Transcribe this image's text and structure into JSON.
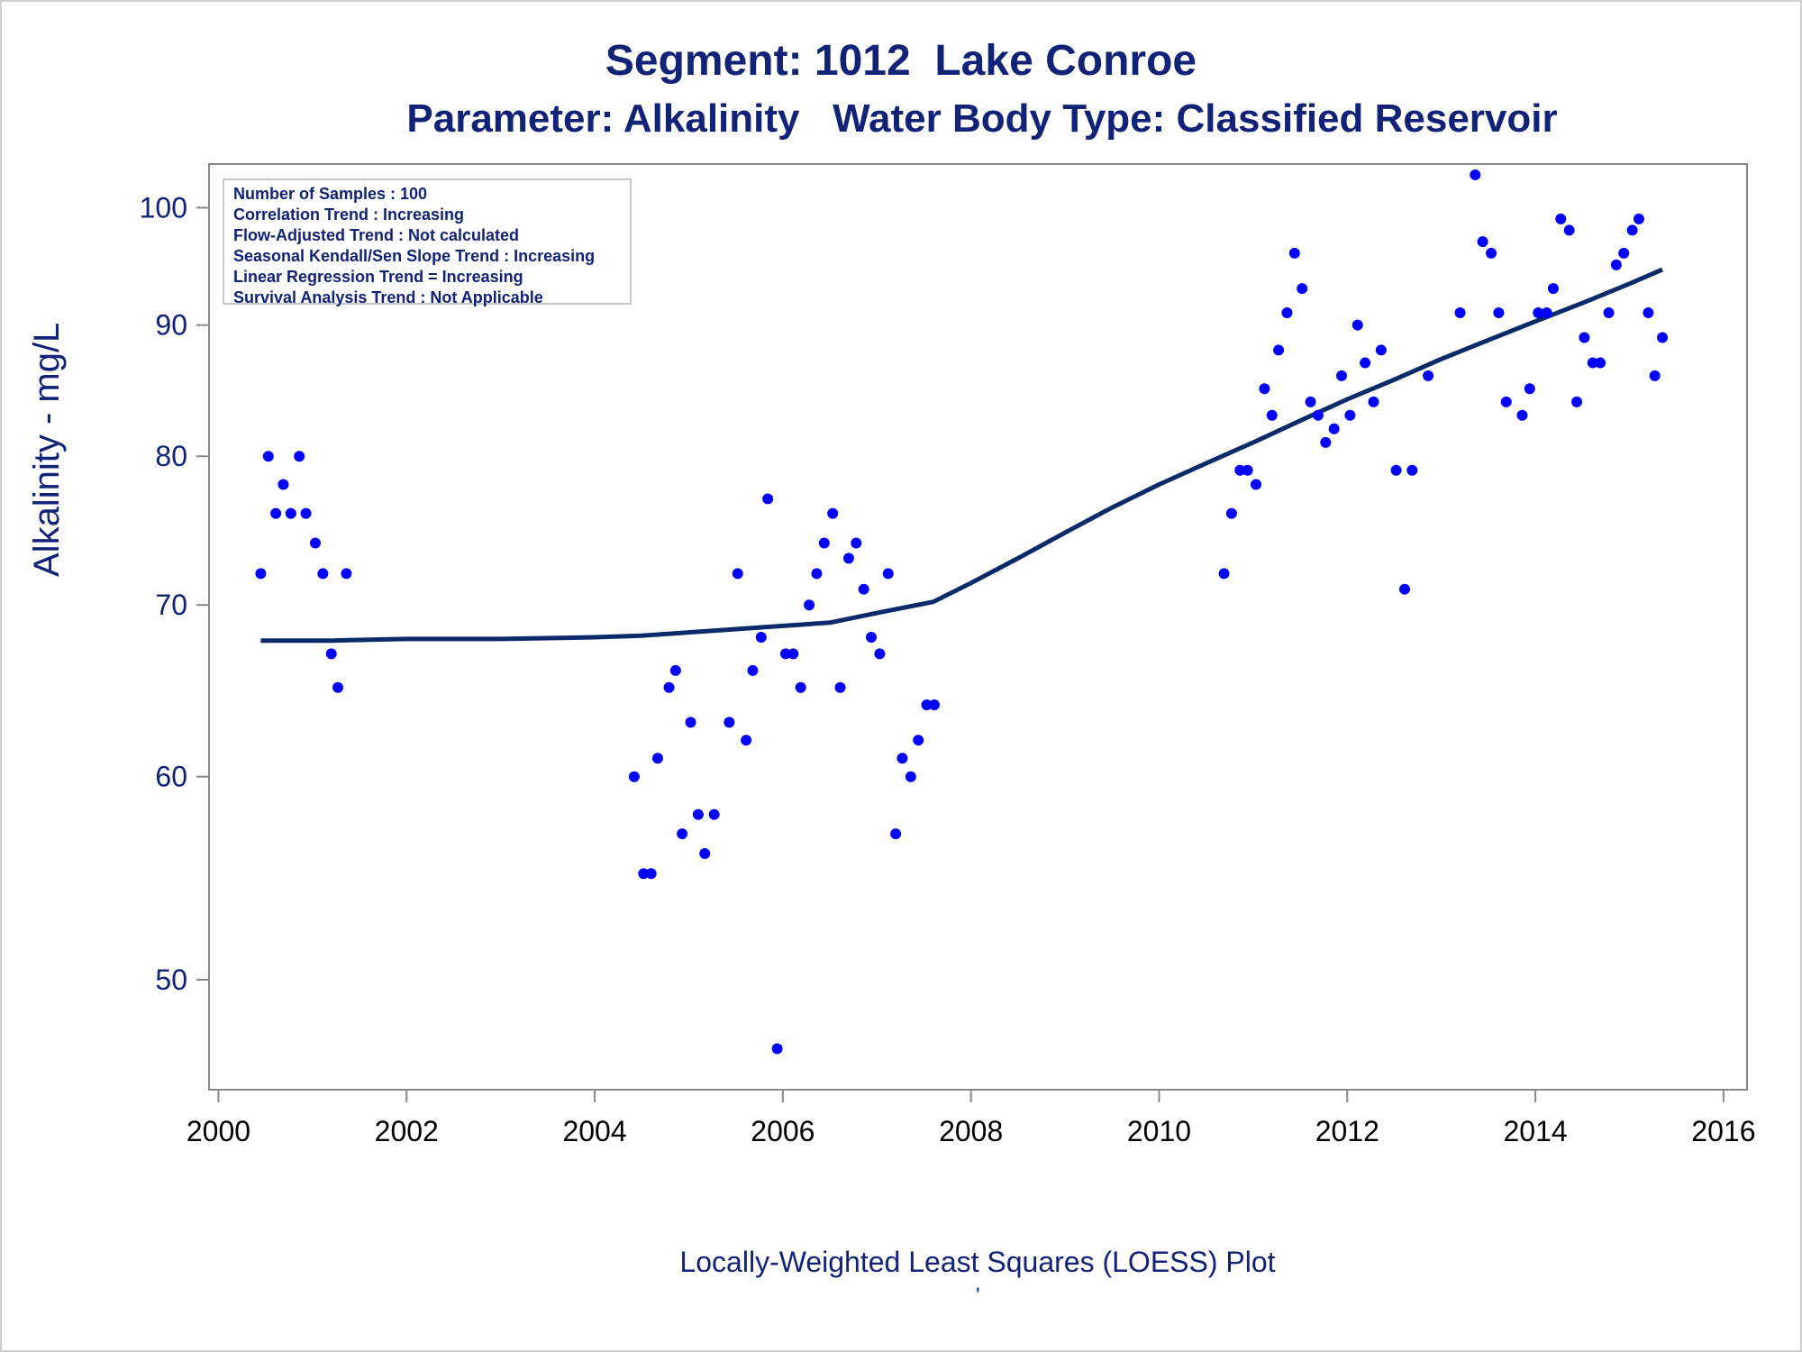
{
  "titles": {
    "line1": "Segment: 1012  Lake Conroe",
    "line2": "Parameter: Alkalinity   Water Body Type: Classified Reservoir"
  },
  "info_box": [
    "Number of Samples : 100",
    "Correlation Trend : Increasing",
    "Flow-Adjusted Trend : Not calculated",
    "Seasonal Kendall/Sen Slope Trend : Increasing",
    "Linear Regression Trend = Increasing",
    "Survival Analysis Trend : Not Applicable"
  ],
  "footnote": "Locally-Weighted Least Squares (LOESS) Plot",
  "footnote_mark": "'",
  "colors": {
    "text": "#112277",
    "points": "#0000ff",
    "line": "#0a2a6a",
    "axis": "#888888"
  },
  "chart_data": {
    "type": "scatter",
    "title": "Segment: 1012  Lake Conroe",
    "subtitle": "Parameter: Alkalinity   Water Body Type: Classified Reservoir",
    "xlabel": "",
    "ylabel": "Alkalinity - mg/L",
    "y_scale": "log",
    "xlim": [
      1999.9,
      2016.25
    ],
    "ylim": [
      45.3,
      104
    ],
    "x_ticks": [
      2000,
      2002,
      2004,
      2006,
      2008,
      2010,
      2012,
      2014,
      2016
    ],
    "y_ticks": [
      50,
      60,
      70,
      80,
      90,
      100
    ],
    "grid": false,
    "series": [
      {
        "kind": "points",
        "points": [
          [
            2000.45,
            72
          ],
          [
            2000.53,
            80
          ],
          [
            2000.61,
            76
          ],
          [
            2000.69,
            78
          ],
          [
            2000.77,
            76
          ],
          [
            2000.86,
            80
          ],
          [
            2000.93,
            76
          ],
          [
            2001.03,
            74
          ],
          [
            2001.11,
            72
          ],
          [
            2001.2,
            67
          ],
          [
            2001.27,
            65
          ],
          [
            2001.36,
            72
          ],
          [
            2004.42,
            60
          ],
          [
            2004.52,
            55
          ],
          [
            2004.6,
            55
          ],
          [
            2004.67,
            61
          ],
          [
            2004.79,
            65
          ],
          [
            2004.86,
            66
          ],
          [
            2004.93,
            57
          ],
          [
            2005.02,
            63
          ],
          [
            2005.1,
            58
          ],
          [
            2005.17,
            56
          ],
          [
            2005.27,
            58
          ],
          [
            2005.43,
            63
          ],
          [
            2005.52,
            72
          ],
          [
            2005.61,
            62
          ],
          [
            2005.68,
            66
          ],
          [
            2005.77,
            68
          ],
          [
            2005.84,
            77
          ],
          [
            2005.94,
            47
          ],
          [
            2006.03,
            67
          ],
          [
            2006.11,
            67
          ],
          [
            2006.19,
            65
          ],
          [
            2006.28,
            70
          ],
          [
            2006.36,
            72
          ],
          [
            2006.44,
            74
          ],
          [
            2006.53,
            76
          ],
          [
            2006.61,
            65
          ],
          [
            2006.7,
            73
          ],
          [
            2006.78,
            74
          ],
          [
            2006.86,
            71
          ],
          [
            2006.94,
            68
          ],
          [
            2007.03,
            67
          ],
          [
            2007.12,
            72
          ],
          [
            2007.2,
            57
          ],
          [
            2007.27,
            61
          ],
          [
            2007.36,
            60
          ],
          [
            2007.44,
            62
          ],
          [
            2007.53,
            64
          ],
          [
            2007.61,
            64
          ],
          [
            2010.69,
            72
          ],
          [
            2010.77,
            76
          ],
          [
            2010.86,
            79
          ],
          [
            2010.94,
            79
          ],
          [
            2011.03,
            78
          ],
          [
            2011.12,
            85
          ],
          [
            2011.2,
            83
          ],
          [
            2011.27,
            88
          ],
          [
            2011.36,
            91
          ],
          [
            2011.44,
            96
          ],
          [
            2011.52,
            93
          ],
          [
            2011.61,
            84
          ],
          [
            2011.69,
            83
          ],
          [
            2011.77,
            81
          ],
          [
            2011.86,
            82
          ],
          [
            2011.94,
            86
          ],
          [
            2012.03,
            83
          ],
          [
            2012.11,
            90
          ],
          [
            2012.19,
            87
          ],
          [
            2012.28,
            84
          ],
          [
            2012.36,
            88
          ],
          [
            2012.52,
            79
          ],
          [
            2012.61,
            71
          ],
          [
            2012.69,
            79
          ],
          [
            2012.86,
            86
          ],
          [
            2013.2,
            91
          ],
          [
            2013.36,
            103
          ],
          [
            2013.44,
            97
          ],
          [
            2013.53,
            96
          ],
          [
            2013.61,
            91
          ],
          [
            2013.69,
            84
          ],
          [
            2013.86,
            83
          ],
          [
            2013.94,
            85
          ],
          [
            2014.03,
            91
          ],
          [
            2014.12,
            91
          ],
          [
            2014.19,
            93
          ],
          [
            2014.27,
            99
          ],
          [
            2014.36,
            98
          ],
          [
            2014.44,
            84
          ],
          [
            2014.52,
            89
          ],
          [
            2014.61,
            87
          ],
          [
            2014.69,
            87
          ],
          [
            2014.78,
            91
          ],
          [
            2014.86,
            95
          ],
          [
            2014.94,
            96
          ],
          [
            2015.03,
            98
          ],
          [
            2015.1,
            99
          ],
          [
            2015.2,
            91
          ],
          [
            2015.27,
            86
          ],
          [
            2015.35,
            89
          ]
        ]
      },
      {
        "kind": "loess-line",
        "points": [
          [
            2000.45,
            67.8
          ],
          [
            2001.2,
            67.8
          ],
          [
            2002.0,
            67.9
          ],
          [
            2003.0,
            67.9
          ],
          [
            2004.0,
            68.0
          ],
          [
            2004.5,
            68.1
          ],
          [
            2005.0,
            68.3
          ],
          [
            2005.5,
            68.5
          ],
          [
            2006.0,
            68.7
          ],
          [
            2006.5,
            68.9
          ],
          [
            2007.0,
            69.5
          ],
          [
            2007.6,
            70.2
          ],
          [
            2008.0,
            71.4
          ],
          [
            2008.5,
            73.0
          ],
          [
            2009.0,
            74.7
          ],
          [
            2009.5,
            76.4
          ],
          [
            2010.0,
            78.0
          ],
          [
            2010.5,
            79.5
          ],
          [
            2011.0,
            81.0
          ],
          [
            2011.5,
            82.6
          ],
          [
            2012.0,
            84.2
          ],
          [
            2012.5,
            85.7
          ],
          [
            2013.0,
            87.3
          ],
          [
            2013.5,
            88.8
          ],
          [
            2014.0,
            90.3
          ],
          [
            2014.5,
            91.8
          ],
          [
            2015.0,
            93.4
          ],
          [
            2015.35,
            94.6
          ]
        ]
      }
    ]
  }
}
